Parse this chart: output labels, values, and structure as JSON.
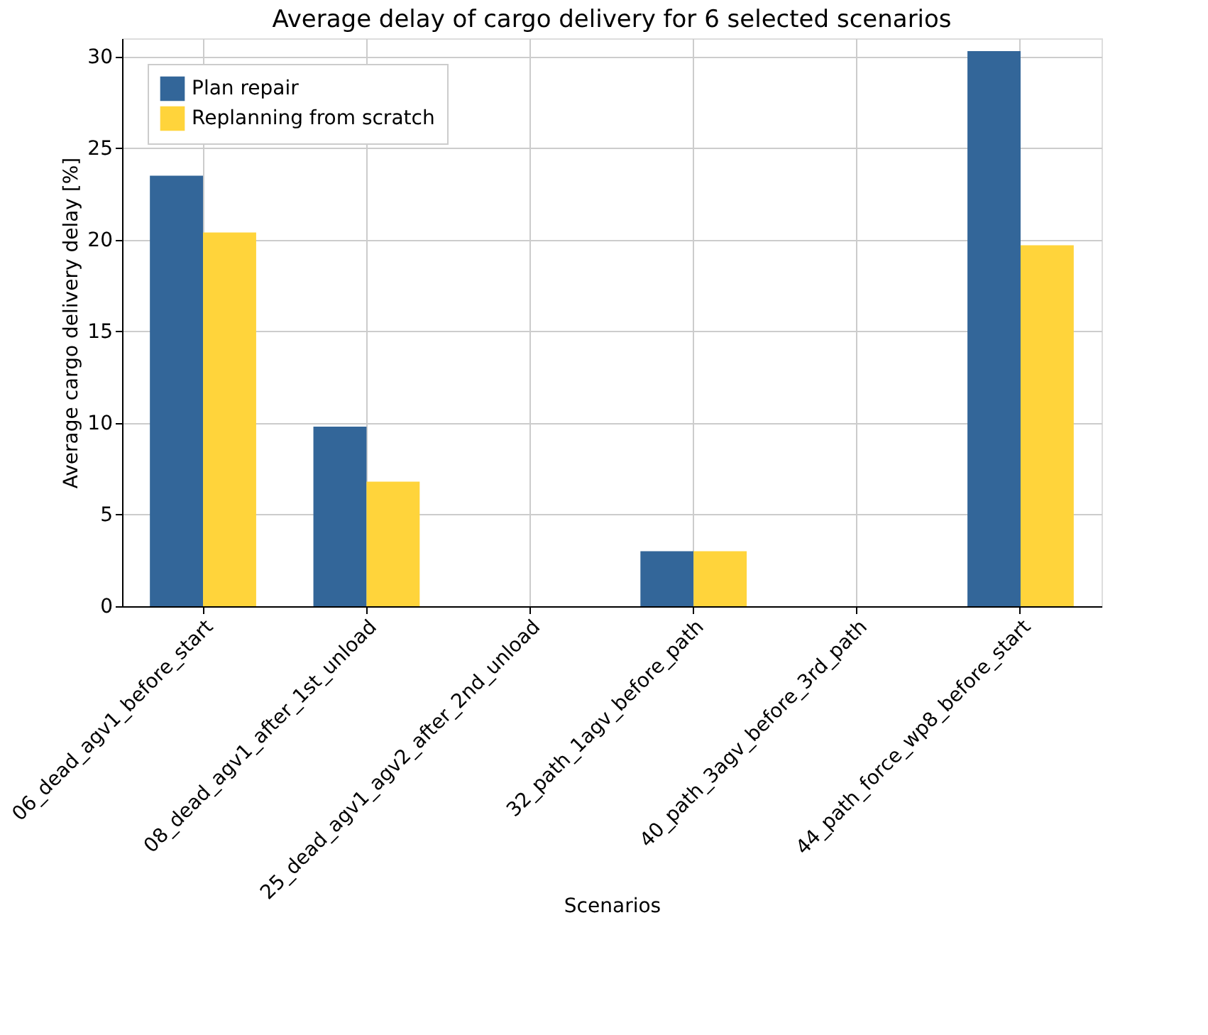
{
  "chart_data": {
    "type": "bar",
    "title": "Average delay of cargo delivery for 6 selected scenarios",
    "xlabel": "Scenarios",
    "ylabel": "Average cargo delivery delay [%]",
    "categories": [
      "06_dead_agv1_before_start",
      "08_dead_agv1_after_1st_unload",
      "25_dead_agv1_agv2_after_2nd_unload",
      "32_path_1agv_before_path",
      "40_path_3agv_before_3rd_path",
      "44_path_force_wp8_before_start"
    ],
    "series": [
      {
        "name": "Plan repair",
        "color": "#336699",
        "values": [
          23.5,
          9.8,
          0,
          3.0,
          0,
          30.3
        ]
      },
      {
        "name": "Replanning from scratch",
        "color": "#ffd43b",
        "values": [
          20.4,
          6.8,
          0,
          3.0,
          0,
          19.7
        ]
      }
    ],
    "ylim": [
      0,
      31
    ],
    "yticks": [
      0,
      5,
      10,
      15,
      20,
      25,
      30
    ],
    "grid": true,
    "legend": "top left"
  }
}
